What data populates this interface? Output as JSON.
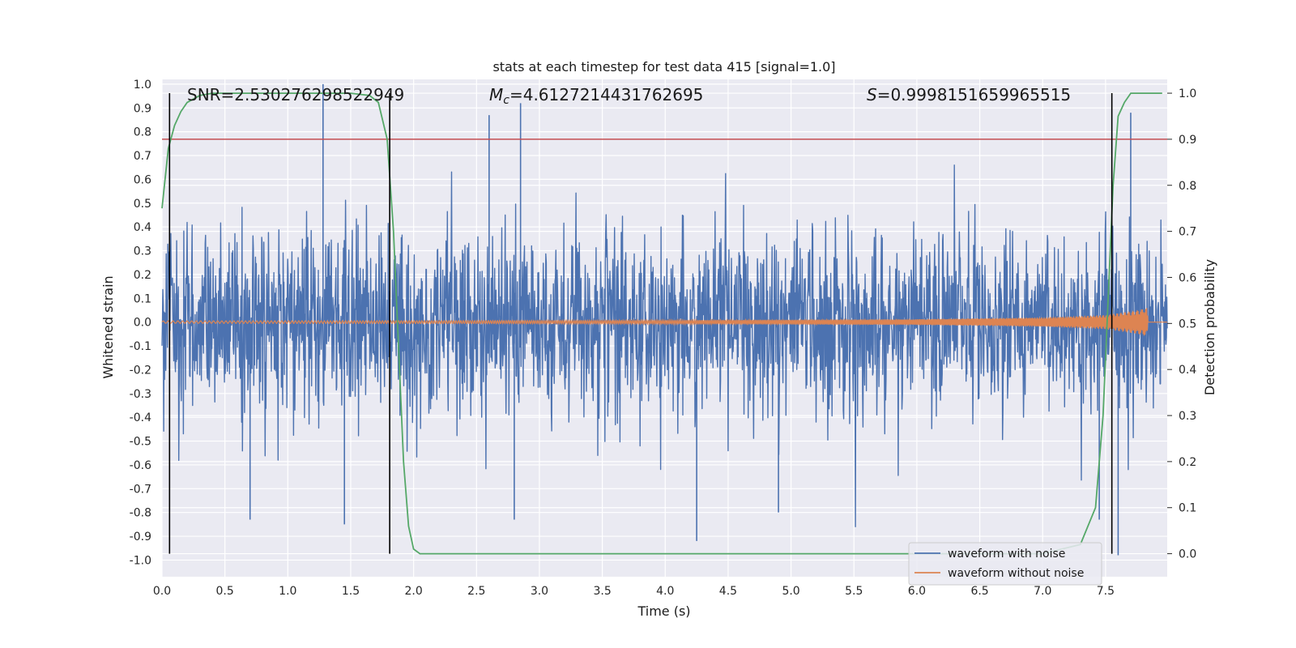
{
  "chart_data": {
    "type": "line",
    "title": "stats at each timestep for test data 415 [signal=1.0]",
    "xlabel": "Time (s)",
    "ylabel": "Whitened strain",
    "y2label": "Detection probability",
    "xlim": [
      0.0,
      7.99
    ],
    "ylim": [
      -1.07,
      1.02
    ],
    "y2lim": [
      -0.05,
      1.03
    ],
    "x_ticks": [
      0.0,
      0.5,
      1.0,
      1.5,
      2.0,
      2.5,
      3.0,
      3.5,
      4.0,
      4.5,
      5.0,
      5.5,
      6.0,
      6.5,
      7.0,
      7.5
    ],
    "x_tick_labels": [
      "0.0",
      "0.5",
      "1.0",
      "1.5",
      "2.0",
      "2.5",
      "3.0",
      "3.5",
      "4.0",
      "4.5",
      "5.0",
      "5.5",
      "6.0",
      "6.5",
      "7.0",
      "7.5"
    ],
    "y_ticks": [
      1.0,
      0.9,
      0.8,
      0.7,
      0.6,
      0.5,
      0.4,
      0.3,
      0.2,
      0.1,
      0.0,
      -0.1,
      -0.2,
      -0.3,
      -0.4,
      -0.5,
      -0.6,
      -0.7,
      -0.8,
      -0.9,
      -1.0
    ],
    "y_tick_labels": [
      "1.0",
      "0.9",
      "0.8",
      "0.7",
      "0.6",
      "0.5",
      "0.4",
      "0.3",
      "0.2",
      "0.1",
      "0.0",
      "-0.1",
      "-0.2",
      "-0.3",
      "-0.4",
      "-0.5",
      "-0.6",
      "-0.7",
      "-0.8",
      "-0.9",
      "-1.0"
    ],
    "y2_ticks": [
      1.0,
      0.9,
      0.8,
      0.7,
      0.6,
      0.5,
      0.4,
      0.3,
      0.2,
      0.1,
      0.0
    ],
    "y2_tick_labels": [
      "1.0",
      "0.9",
      "0.8",
      "0.7",
      "0.6",
      "0.5",
      "0.4",
      "0.3",
      "0.2",
      "0.1",
      "0.0"
    ],
    "annotations": {
      "snr": "SNR=2.530276298522949",
      "mc_symbol": "M",
      "mc_sub": "c",
      "mc_value": "=4.6127214431762695",
      "s_symbol": "S",
      "s_value": "=0.9998151659965515"
    },
    "legend": {
      "position": "lower-right",
      "entries": [
        {
          "label": "waveform with noise",
          "color": "#4c72b0"
        },
        {
          "label": "waveform without noise",
          "color": "#dd8452"
        }
      ]
    },
    "threshold": {
      "y2": 0.9,
      "color": "#c44e52"
    },
    "vertical_markers": [
      0.06,
      1.81,
      7.55
    ],
    "series": [
      {
        "name": "waveform with noise",
        "axis": "left",
        "color": "#4c72b0",
        "description": "dense whitened noise, typical amplitude about +/-0.4 with peaks near +/-0.9",
        "peaks": [
          {
            "x": 1.28,
            "y": 1.0
          },
          {
            "x": 2.85,
            "y": 0.92
          },
          {
            "x": 2.6,
            "y": 0.87
          },
          {
            "x": 7.7,
            "y": 0.88
          },
          {
            "x": 4.25,
            "y": -0.92
          },
          {
            "x": 1.45,
            "y": -0.85
          },
          {
            "x": 0.7,
            "y": -0.83
          },
          {
            "x": 2.8,
            "y": -0.83
          },
          {
            "x": 4.9,
            "y": -0.8
          },
          {
            "x": 7.45,
            "y": -0.83
          },
          {
            "x": 7.6,
            "y": -0.98
          }
        ]
      },
      {
        "name": "waveform without noise",
        "axis": "left",
        "color": "#dd8452",
        "description": "chirp signal growing in amplitude and ending near x=7.83",
        "envelope": {
          "x": [
            0.0,
            2.0,
            4.0,
            6.0,
            7.0,
            7.5,
            7.75,
            7.83,
            7.84
          ],
          "amp": [
            0.005,
            0.006,
            0.008,
            0.012,
            0.02,
            0.03,
            0.05,
            0.06,
            0.0
          ]
        }
      },
      {
        "name": "detection probability",
        "axis": "right",
        "color": "#55a868",
        "x": [
          0.0,
          0.05,
          0.1,
          0.15,
          0.2,
          0.3,
          0.4,
          0.5,
          1.0,
          1.5,
          1.65,
          1.72,
          1.79,
          1.84,
          1.88,
          1.92,
          1.96,
          2.0,
          2.05,
          2.1,
          4.0,
          7.0,
          7.3,
          7.42,
          7.48,
          7.52,
          7.56,
          7.6,
          7.65,
          7.7,
          7.75,
          7.85,
          7.95
        ],
        "y": [
          0.75,
          0.88,
          0.93,
          0.96,
          0.98,
          0.995,
          1.0,
          1.0,
          1.0,
          1.0,
          0.995,
          0.98,
          0.9,
          0.7,
          0.45,
          0.2,
          0.06,
          0.01,
          0.0,
          0.0,
          0.0,
          0.0,
          0.02,
          0.1,
          0.3,
          0.55,
          0.8,
          0.95,
          0.98,
          1.0,
          1.0,
          1.0,
          1.0
        ]
      }
    ]
  }
}
